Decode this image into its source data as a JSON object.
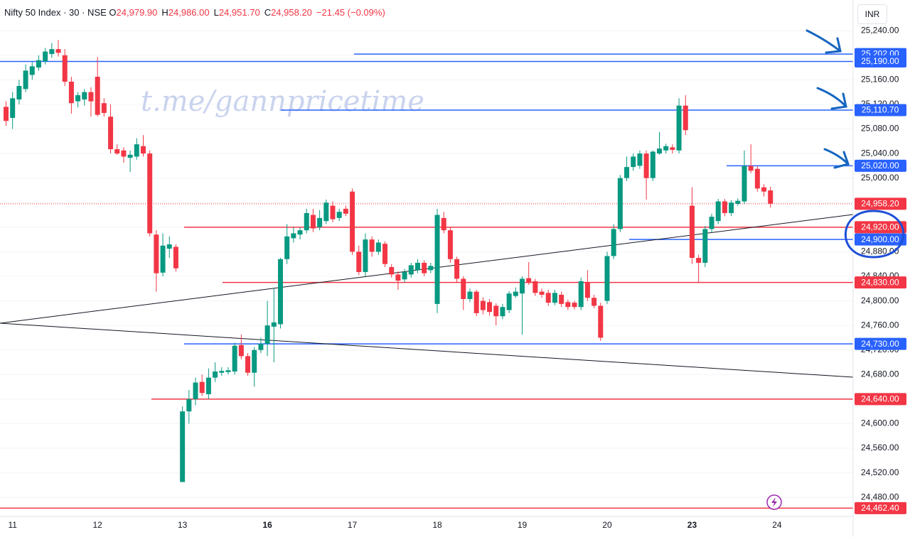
{
  "header": {
    "symbol": "Nifty 50 Index · 30 · NSE",
    "o_label": "O",
    "o": "24,979.90",
    "h_label": "H",
    "h": "24,986.00",
    "l_label": "L",
    "l": "24,951.70",
    "c_label": "C",
    "c": "24,958.20",
    "change": "−21.45 (−0.09%)"
  },
  "currency": "INR",
  "chart_data": {
    "type": "candlestick",
    "watermark": "t.me/gannpricetime",
    "categories": [
      null,
      "11",
      null,
      null,
      null,
      null,
      null,
      null,
      null,
      null,
      null,
      null,
      null,
      null,
      "12",
      null,
      null,
      null,
      null,
      null,
      null,
      null,
      null,
      null,
      null,
      null,
      null,
      "13",
      null,
      null,
      null,
      null,
      null,
      null,
      null,
      null,
      null,
      null,
      null,
      null,
      "16",
      null,
      null,
      null,
      null,
      null,
      null,
      null,
      null,
      null,
      null,
      null,
      null,
      "17",
      null,
      null,
      null,
      null,
      null,
      null,
      null,
      null,
      null,
      null,
      null,
      null,
      "18",
      null,
      null,
      null,
      null,
      null,
      null,
      null,
      null,
      null,
      null,
      null,
      null,
      "19",
      null,
      null,
      null,
      null,
      null,
      null,
      null,
      null,
      null,
      null,
      null,
      null,
      "20",
      null,
      null,
      null,
      null,
      null,
      null,
      null,
      null,
      null,
      null,
      null,
      null,
      "23",
      null,
      null,
      null,
      null,
      null,
      null,
      null,
      null,
      null,
      null,
      null,
      null,
      "24"
    ],
    "open": [
      25116,
      25098,
      25128,
      25145,
      25168,
      25180,
      25190,
      25202,
      25210,
      25200,
      25157,
      25125,
      25128,
      25140,
      25165,
      25122,
      25100,
      25047,
      25045,
      25033,
      25035,
      25052,
      25040,
      24908,
      24846,
      24885,
      24888,
      24505,
      24620,
      24640,
      24668,
      24648,
      24675,
      24683,
      24684,
      24685,
      24728,
      24710,
      24683,
      24720,
      24730,
      24758,
      24762,
      24868,
      24902,
      24908,
      24915,
      24940,
      24920,
      24930,
      24955,
      24935,
      24950,
      24978,
      24880,
      24847,
      24900,
      24880,
      24893,
      24855,
      24843,
      24835,
      24843,
      24850,
      24862,
      24850,
      24795,
      24935,
      24915,
      24868,
      24836,
      24803,
      24815,
      24800,
      24798,
      24792,
      24775,
      24785,
      24808,
      24812,
      24837,
      24832,
      24815,
      24813,
      24797,
      24810,
      24798,
      24797,
      24790,
      24830,
      24805,
      24792,
      24800,
      24873,
      24917,
      25000,
      25018,
      25020,
      25040,
      25000,
      25040,
      25045,
      25050,
      25045,
      25118,
      24955,
      24870,
      24862,
      24917,
      24930,
      24962,
      24943,
      24958,
      24962,
      25020,
      25015,
      24985,
      24979.9,
      null
    ],
    "high": [
      25125,
      25140,
      25160,
      25185,
      25190,
      25200,
      25212,
      25220,
      25225,
      25210,
      25165,
      25140,
      25145,
      25148,
      25197,
      25130,
      25120,
      25055,
      25050,
      25045,
      25065,
      25070,
      25045,
      24915,
      24910,
      24905,
      24892,
      24628,
      24655,
      24675,
      24680,
      24690,
      24700,
      24692,
      24692,
      24732,
      24745,
      24715,
      24725,
      24740,
      24800,
      24820,
      24870,
      24925,
      24920,
      24920,
      24950,
      24950,
      24948,
      24965,
      24962,
      24950,
      24955,
      24983,
      24890,
      24910,
      24905,
      24900,
      24897,
      24860,
      24848,
      24852,
      24862,
      24868,
      24866,
      24862,
      24950,
      24945,
      24920,
      24872,
      24840,
      24820,
      24818,
      24806,
      24803,
      24796,
      24795,
      24816,
      24822,
      24840,
      24863,
      24836,
      24820,
      24818,
      24818,
      24815,
      24802,
      24800,
      24838,
      24850,
      24810,
      24797,
      24880,
      24925,
      25005,
      25035,
      25040,
      25045,
      25045,
      25045,
      25075,
      25056,
      25055,
      25130,
      25135,
      24985,
      24875,
      24922,
      24942,
      24966,
      24966,
      24964,
      24967,
      25045,
      25055,
      25020,
      24990,
      24986,
      null
    ],
    "low": [
      25085,
      25080,
      25120,
      25140,
      25160,
      25175,
      25185,
      25196,
      25198,
      25150,
      25105,
      25115,
      25118,
      25100,
      25100,
      25100,
      25040,
      25038,
      25025,
      25010,
      25030,
      25035,
      24905,
      24815,
      24840,
      24870,
      24848,
      24505,
      24600,
      24630,
      24645,
      24640,
      24668,
      24678,
      24680,
      24680,
      24705,
      24678,
      24660,
      24715,
      24710,
      24700,
      24755,
      24860,
      24895,
      24900,
      24910,
      24912,
      24915,
      24925,
      24928,
      24930,
      24938,
      24875,
      24842,
      24840,
      24872,
      24875,
      24855,
      24838,
      24818,
      24830,
      24838,
      24845,
      24840,
      24845,
      24780,
      24910,
      24862,
      24830,
      24785,
      24798,
      24775,
      24778,
      24776,
      24760,
      24770,
      24780,
      24805,
      24745,
      24826,
      24808,
      24805,
      24792,
      24793,
      24790,
      24785,
      24786,
      24785,
      24800,
      24788,
      24735,
      24795,
      24868,
      24912,
      24995,
      25012,
      25015,
      24965,
      24995,
      25038,
      25040,
      25040,
      25040,
      25070,
      24860,
      24830,
      24855,
      24912,
      24925,
      24938,
      24938,
      24955,
      24958,
      25008,
      24978,
      24970,
      24951.7,
      null
    ],
    "close": [
      25093,
      25130,
      25150,
      25175,
      25182,
      25192,
      25206,
      25210,
      25204,
      25157,
      25122,
      25135,
      25140,
      25125,
      25103,
      25106,
      25047,
      25040,
      25035,
      25038,
      25055,
      25040,
      24910,
      24845,
      24890,
      24892,
      24853,
      24620,
      24640,
      24667,
      24650,
      24675,
      24685,
      24686,
      24687,
      24727,
      24710,
      24683,
      24720,
      24730,
      24760,
      24765,
      24868,
      24905,
      24910,
      24915,
      24943,
      24918,
      24935,
      24960,
      24933,
      24945,
      24942,
      24880,
      24847,
      24900,
      24880,
      24895,
      24860,
      24843,
      24833,
      24847,
      24858,
      24862,
      24845,
      24857,
      24940,
      24915,
      24868,
      24836,
      24803,
      24815,
      24780,
      24785,
      24782,
      24775,
      24790,
      24812,
      24815,
      24836,
      24830,
      24813,
      24810,
      24797,
      24813,
      24795,
      24790,
      24790,
      24832,
      24805,
      24792,
      24740,
      24873,
      24917,
      25000,
      25018,
      25035,
      25040,
      25000,
      25043,
      25048,
      25052,
      25046,
      25118,
      25078,
      24870,
      24862,
      24917,
      24937,
      24962,
      24943,
      24960,
      24963,
      25020,
      25012,
      24983,
      24978,
      24958.2,
      null
    ],
    "up_color": "#089981",
    "down_color": "#f23645",
    "ylim": [
      24449,
      25290
    ],
    "yticks": [
      {
        "value": 24480,
        "label": "24,480.00"
      },
      {
        "value": 24520,
        "label": "24,520.00"
      },
      {
        "value": 24560,
        "label": "24,560.00"
      },
      {
        "value": 24600,
        "label": "24,600.00"
      },
      {
        "value": 24640,
        "label": "24,640.00"
      },
      {
        "value": 24680,
        "label": "24,680.00"
      },
      {
        "value": 24720,
        "label": "24,720.00"
      },
      {
        "value": 24760,
        "label": "24,760.00"
      },
      {
        "value": 24800,
        "label": "24,800.00"
      },
      {
        "value": 24840,
        "label": "24,840.00"
      },
      {
        "value": 24880,
        "label": "24,880.00"
      },
      {
        "value": 24920,
        "label": "24,920.00"
      },
      {
        "value": 24960,
        "label": "24,960.00"
      },
      {
        "value": 25000,
        "label": "25,000.00"
      },
      {
        "value": 25040,
        "label": "25,040.00"
      },
      {
        "value": 25080,
        "label": "25,080.00"
      },
      {
        "value": 25120,
        "label": "25,120.00"
      },
      {
        "value": 25160,
        "label": "25,160.00"
      },
      {
        "value": 25200,
        "label": "25,200.00"
      },
      {
        "value": 25240,
        "label": "25,240.00"
      }
    ],
    "grid": true,
    "levels": [
      {
        "value": 25202,
        "label": "25,202.00",
        "color": "#2962ff"
      },
      {
        "value": 25190,
        "label": "25,190.00",
        "color": "#2962ff"
      },
      {
        "value": 25110.7,
        "label": "25,110.70",
        "color": "#2962ff"
      },
      {
        "value": 25020,
        "label": "25,020.00",
        "color": "#2962ff"
      },
      {
        "value": 24920,
        "label": "24,920.00",
        "color": "#f23645"
      },
      {
        "value": 24900,
        "label": "24,900.00",
        "color": "#2962ff"
      },
      {
        "value": 24830,
        "label": "24,830.00",
        "color": "#f23645"
      },
      {
        "value": 24730,
        "label": "24,730.00",
        "color": "#2962ff"
      },
      {
        "value": 24640,
        "label": "24,640.00",
        "color": "#f23645"
      },
      {
        "value": 24462.4,
        "label": "24,462.40",
        "color": "#f23645"
      }
    ],
    "last_price": {
      "value": 24958.2,
      "label": "24,958.20",
      "color": "#f23645"
    }
  }
}
